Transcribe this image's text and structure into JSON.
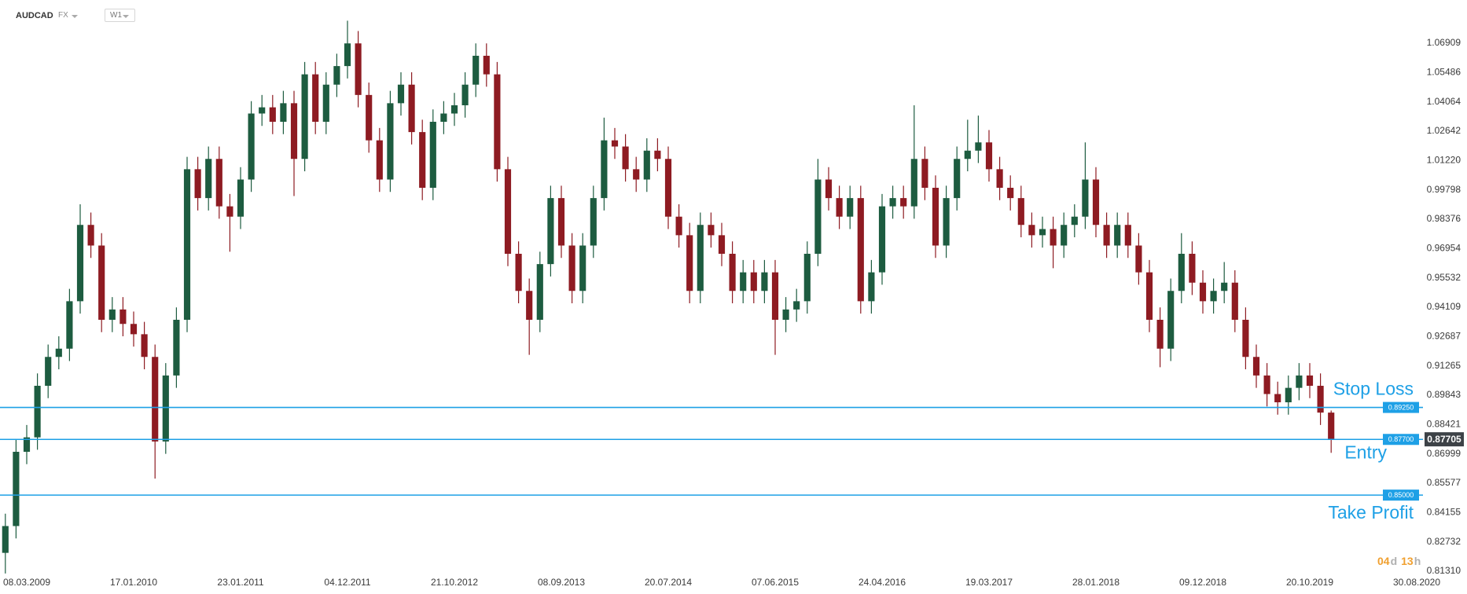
{
  "header": {
    "symbol": "AUDCAD",
    "market": "FX",
    "interval": "W1"
  },
  "countdown": [
    "04",
    "d",
    "13",
    "h"
  ],
  "chart_data": {
    "type": "candlestick",
    "up_color": "#1d5c40",
    "down_color": "#8e1b22",
    "level_color": "#1ea0e6",
    "ylim": [
      0.80815,
      1.08242
    ],
    "yticks": [
      1.06909,
      1.05486,
      1.04064,
      1.02642,
      {
        "value": 1.0122,
        "label": "1.01220"
      },
      0.99798,
      0.98376,
      0.96954,
      0.95532,
      0.94109,
      0.92687,
      0.91265,
      0.89843,
      0.88421,
      0.86999,
      0.85577,
      0.84155,
      0.82732,
      {
        "value": 0.8131,
        "label": "0.81310"
      }
    ],
    "categories": [
      null,
      null,
      "08.03.2009",
      null,
      null,
      null,
      null,
      null,
      null,
      null,
      null,
      null,
      "17.01.2010",
      null,
      null,
      null,
      null,
      null,
      null,
      null,
      null,
      null,
      "23.01.2011",
      null,
      null,
      null,
      null,
      null,
      null,
      null,
      null,
      null,
      "04.12.2011",
      null,
      null,
      null,
      null,
      null,
      null,
      null,
      null,
      null,
      "21.10.2012",
      null,
      null,
      null,
      null,
      null,
      null,
      null,
      null,
      null,
      "08.09.2013",
      null,
      null,
      null,
      null,
      null,
      null,
      null,
      null,
      null,
      "20.07.2014",
      null,
      null,
      null,
      null,
      null,
      null,
      null,
      null,
      null,
      "07.06.2015",
      null,
      null,
      null,
      null,
      null,
      null,
      null,
      null,
      null,
      "24.04.2016",
      null,
      null,
      null,
      null,
      null,
      null,
      null,
      null,
      null,
      "19.03.2017",
      null,
      null,
      null,
      null,
      null,
      null,
      null,
      null,
      null,
      "28.01.2018",
      null,
      null,
      null,
      null,
      null,
      null,
      null,
      null,
      null,
      "09.12.2018",
      null,
      null,
      null,
      null,
      null,
      null,
      null,
      null,
      null,
      "20.10.2019",
      null,
      null,
      null,
      null,
      null,
      null,
      null,
      null,
      null,
      "30.08.2020",
      null,
      null
    ],
    "open": [
      0.822,
      0.835,
      0.871,
      0.878,
      0.903,
      0.917,
      0.921,
      0.944,
      0.981,
      0.971,
      0.935,
      0.94,
      0.933,
      0.928,
      0.917,
      0.876,
      0.908,
      0.935,
      1.008,
      0.994,
      1.013,
      0.99,
      0.985,
      1.003,
      1.035,
      1.038,
      1.031,
      1.04,
      1.013,
      1.054,
      1.031,
      1.049,
      1.058,
      1.069,
      1.044,
      1.022,
      1.003,
      1.04,
      1.049,
      1.026,
      0.999,
      1.031,
      1.035,
      1.039,
      1.049,
      1.063,
      1.054,
      1.008,
      0.967,
      0.949,
      0.935,
      0.962,
      0.994,
      0.971,
      0.949,
      0.971,
      0.994,
      1.022,
      1.019,
      1.008,
      1.003,
      1.017,
      1.013,
      0.985,
      0.976,
      0.949,
      0.981,
      0.976,
      0.967,
      0.949,
      0.958,
      0.949,
      0.958,
      0.935,
      0.94,
      0.944,
      0.967,
      1.003,
      0.994,
      0.985,
      0.994,
      0.944,
      0.958,
      0.99,
      0.994,
      0.99,
      1.013,
      0.999,
      0.971,
      0.994,
      1.013,
      1.017,
      1.021,
      1.008,
      0.999,
      0.994,
      0.981,
      0.976,
      0.979,
      0.971,
      0.981,
      0.985,
      1.003,
      0.981,
      0.971,
      0.981,
      0.971,
      0.958,
      0.935,
      0.921,
      0.949,
      0.967,
      0.953,
      0.944,
      0.949,
      0.953,
      0.935,
      0.917,
      0.908,
      0.899,
      0.895,
      0.902,
      0.908,
      0.903,
      0.89,
      null,
      null,
      null,
      null,
      null,
      null,
      null,
      null,
      null,
      null
    ],
    "high": [
      0.841,
      0.877,
      0.884,
      0.909,
      0.923,
      0.927,
      0.95,
      0.991,
      0.987,
      0.977,
      0.946,
      0.946,
      0.939,
      0.934,
      0.923,
      0.914,
      0.941,
      1.014,
      1.014,
      1.019,
      1.019,
      0.996,
      1.009,
      1.041,
      1.044,
      1.044,
      1.046,
      1.046,
      1.06,
      1.06,
      1.055,
      1.064,
      1.08,
      1.075,
      1.05,
      1.028,
      1.046,
      1.055,
      1.055,
      1.032,
      1.037,
      1.041,
      1.045,
      1.055,
      1.069,
      1.069,
      1.06,
      1.014,
      0.973,
      0.955,
      0.968,
      1.0,
      1.0,
      0.977,
      0.977,
      1.0,
      1.033,
      1.028,
      1.025,
      1.014,
      1.023,
      1.023,
      1.019,
      0.991,
      0.982,
      0.987,
      0.987,
      0.982,
      0.973,
      0.964,
      0.964,
      0.964,
      0.964,
      0.946,
      0.95,
      0.973,
      1.013,
      1.009,
      1.0,
      1.0,
      1.0,
      0.964,
      0.996,
      1.0,
      1.0,
      1.039,
      1.019,
      1.005,
      1.0,
      1.019,
      1.032,
      1.034,
      1.027,
      1.014,
      1.005,
      1.0,
      0.987,
      0.985,
      0.985,
      0.987,
      0.991,
      1.021,
      1.009,
      0.987,
      0.987,
      0.987,
      0.977,
      0.964,
      0.941,
      0.955,
      0.977,
      0.973,
      0.959,
      0.955,
      0.963,
      0.959,
      0.941,
      0.923,
      0.914,
      0.905,
      0.908,
      0.914,
      0.914,
      0.909,
      0.891,
      null,
      null,
      null,
      null,
      null,
      null,
      null,
      null,
      null,
      null
    ],
    "low": [
      0.812,
      0.829,
      0.865,
      0.872,
      0.897,
      0.911,
      0.915,
      0.938,
      0.965,
      0.929,
      0.929,
      0.927,
      0.922,
      0.911,
      0.858,
      0.87,
      0.902,
      0.929,
      0.988,
      0.988,
      0.984,
      0.968,
      0.979,
      0.997,
      1.029,
      1.025,
      1.025,
      0.995,
      1.007,
      1.025,
      1.025,
      1.043,
      1.052,
      1.038,
      1.016,
      0.997,
      0.997,
      1.034,
      1.02,
      0.993,
      0.993,
      1.025,
      1.029,
      1.033,
      1.043,
      1.048,
      1.002,
      0.961,
      0.943,
      0.918,
      0.929,
      0.956,
      0.965,
      0.943,
      0.943,
      0.965,
      0.988,
      1.013,
      1.002,
      0.997,
      0.997,
      1.007,
      0.979,
      0.97,
      0.943,
      0.943,
      0.97,
      0.961,
      0.943,
      0.943,
      0.943,
      0.943,
      0.918,
      0.929,
      0.934,
      0.938,
      0.961,
      0.988,
      0.979,
      0.979,
      0.938,
      0.938,
      0.952,
      0.984,
      0.984,
      0.984,
      0.993,
      0.965,
      0.965,
      0.988,
      1.007,
      1.011,
      1.002,
      0.993,
      0.988,
      0.975,
      0.97,
      0.97,
      0.96,
      0.965,
      0.975,
      0.979,
      0.975,
      0.965,
      0.965,
      0.965,
      0.952,
      0.929,
      0.912,
      0.915,
      0.943,
      0.947,
      0.938,
      0.938,
      0.943,
      0.929,
      0.911,
      0.902,
      0.893,
      0.889,
      0.889,
      0.896,
      0.897,
      0.884,
      0.8705,
      null,
      null,
      null,
      null,
      null,
      null,
      null,
      null,
      null,
      null
    ],
    "close": [
      0.835,
      0.871,
      0.878,
      0.903,
      0.917,
      0.921,
      0.944,
      0.981,
      0.971,
      0.935,
      0.94,
      0.933,
      0.928,
      0.917,
      0.876,
      0.908,
      0.935,
      1.008,
      0.994,
      1.013,
      0.99,
      0.985,
      1.003,
      1.035,
      1.038,
      1.031,
      1.04,
      1.013,
      1.054,
      1.031,
      1.049,
      1.058,
      1.069,
      1.044,
      1.022,
      1.003,
      1.04,
      1.049,
      1.026,
      0.999,
      1.031,
      1.035,
      1.039,
      1.049,
      1.063,
      1.054,
      1.008,
      0.967,
      0.949,
      0.935,
      0.962,
      0.994,
      0.971,
      0.949,
      0.971,
      0.994,
      1.022,
      1.019,
      1.008,
      1.003,
      1.017,
      1.013,
      0.985,
      0.976,
      0.949,
      0.981,
      0.976,
      0.967,
      0.949,
      0.958,
      0.949,
      0.958,
      0.935,
      0.94,
      0.944,
      0.967,
      1.003,
      0.994,
      0.985,
      0.994,
      0.944,
      0.958,
      0.99,
      0.994,
      0.99,
      1.013,
      0.999,
      0.971,
      0.994,
      1.013,
      1.017,
      1.021,
      1.008,
      0.999,
      0.994,
      0.981,
      0.976,
      0.979,
      0.971,
      0.981,
      0.985,
      1.003,
      0.981,
      0.971,
      0.981,
      0.971,
      0.958,
      0.935,
      0.921,
      0.949,
      0.967,
      0.953,
      0.944,
      0.949,
      0.953,
      0.935,
      0.917,
      0.908,
      0.899,
      0.895,
      0.902,
      0.908,
      0.903,
      0.89,
      0.8771,
      null,
      null,
      null,
      null,
      null,
      null,
      null,
      null,
      null,
      null
    ],
    "levels": [
      {
        "name": "Stop Loss",
        "value": 0.8925,
        "label": "0.89250"
      },
      {
        "name": "Entry",
        "value": 0.877,
        "label": "0.87700"
      },
      {
        "name": "Take Profit",
        "value": 0.85,
        "label": "0.85000"
      }
    ],
    "current_price": 0.87705
  }
}
